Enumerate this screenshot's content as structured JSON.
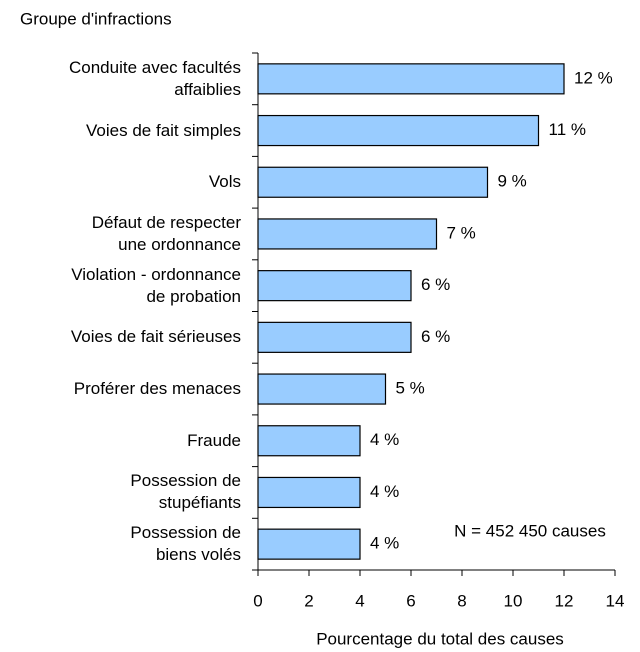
{
  "chart_data": {
    "type": "bar",
    "orientation": "horizontal",
    "y_axis_title": "Groupe d'infractions",
    "x_axis_title": "Pourcentage du total des causes",
    "annotation": "N = 452 450 causes",
    "categories": [
      "Conduite avec facultés\naffaiblies",
      "Voies de fait simples",
      "Vols",
      "Défaut de respecter\nune ordonnance",
      "Violation - ordonnance\nde probation",
      "Voies de fait sérieuses",
      "Proférer des menaces",
      "Fraude",
      "Possession de\nstupéfiants",
      "Possession de\nbiens volés"
    ],
    "values": [
      12,
      11,
      9,
      7,
      6,
      6,
      5,
      4,
      4,
      4
    ],
    "value_labels": [
      "12 %",
      "11 %",
      "9 %",
      "7 %",
      "6 %",
      "6 %",
      "5 %",
      "4 %",
      "4 %",
      "4 %"
    ],
    "color": "#99ccff",
    "xlim": [
      0,
      14
    ],
    "xticks": [
      0,
      2,
      4,
      6,
      8,
      10,
      12,
      14
    ]
  }
}
